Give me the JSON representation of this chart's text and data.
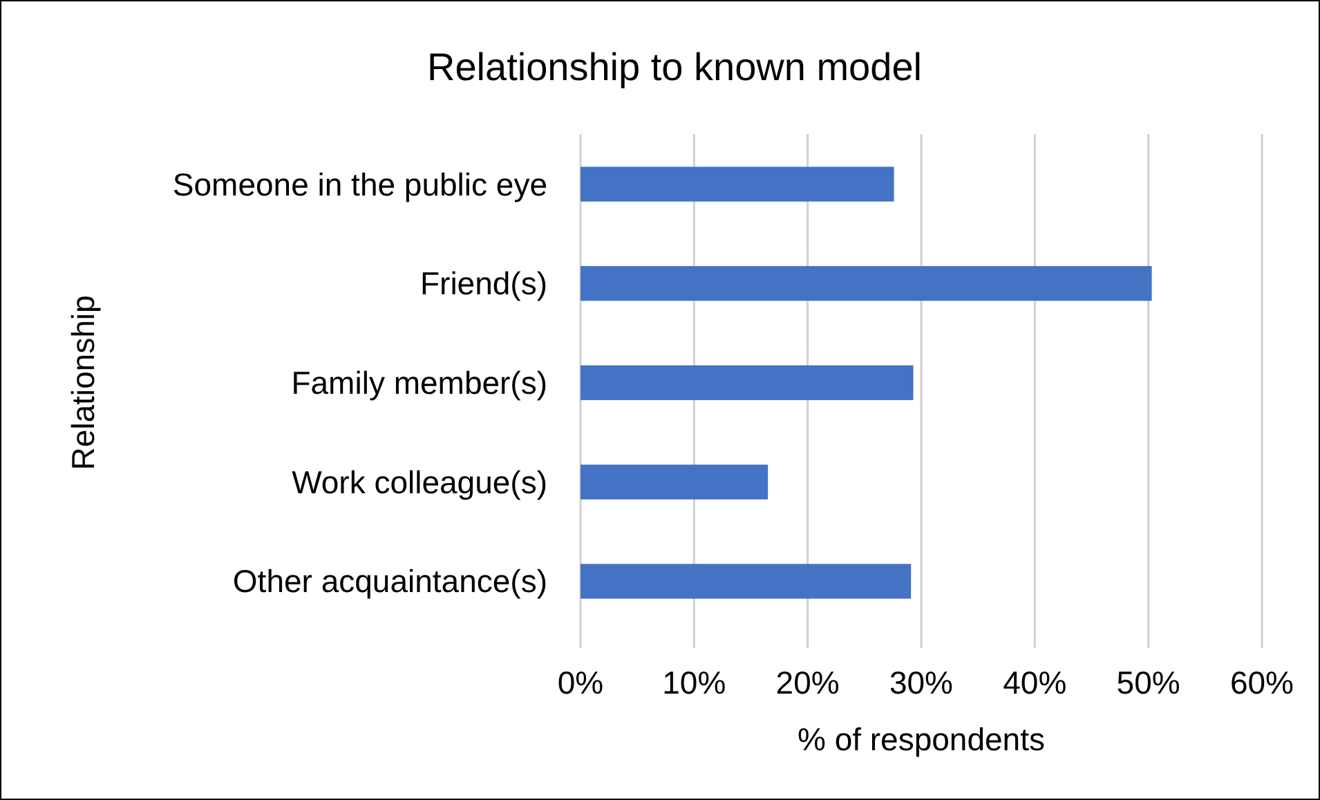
{
  "chart_data": {
    "type": "bar",
    "orientation": "horizontal",
    "title": "Relationship to known model",
    "xlabel": "% of respondents",
    "ylabel": "Relationship",
    "categories": [
      "Someone in the public eye",
      "Friend(s)",
      "Family member(s)",
      "Work colleague(s)",
      "Other acquaintance(s)"
    ],
    "values": [
      27.6,
      50.3,
      29.3,
      16.5,
      29.1
    ],
    "color": "#4472c4",
    "xlim": [
      0,
      60
    ],
    "xticks": [
      {
        "value": 0,
        "label": "0%"
      },
      {
        "value": 10,
        "label": "10%"
      },
      {
        "value": 20,
        "label": "20%"
      },
      {
        "value": 30,
        "label": "30%"
      },
      {
        "value": 40,
        "label": "40%"
      },
      {
        "value": 50,
        "label": "50%"
      },
      {
        "value": 60,
        "label": "60%"
      }
    ],
    "grid": "x"
  }
}
